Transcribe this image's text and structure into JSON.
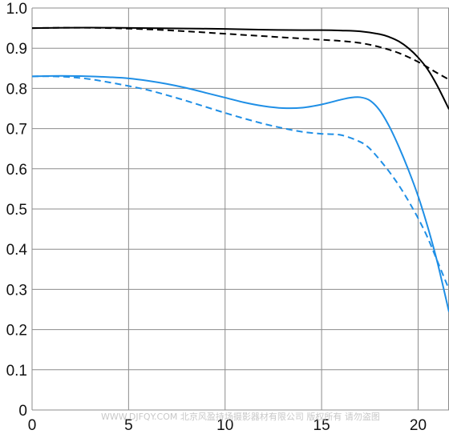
{
  "chart_data": {
    "type": "line",
    "title": "",
    "xlabel": "",
    "ylabel": "",
    "xlim": [
      0,
      21.6
    ],
    "ylim": [
      0,
      1.0
    ],
    "x_ticks": [
      "0",
      "5",
      "10",
      "15",
      "20"
    ],
    "y_ticks": [
      "0",
      "0.1",
      "0.2",
      "0.3",
      "0.4",
      "0.5",
      "0.6",
      "0.7",
      "0.8",
      "0.9",
      "1.0"
    ],
    "grid": true,
    "legend": "none",
    "colors": {
      "black": "#000000",
      "blue": "#1f8fe6",
      "grid": "#8c8c8c"
    },
    "series": [
      {
        "color": "#000000",
        "dash": false,
        "x": [
          0,
          2,
          4,
          6,
          8,
          10,
          12,
          14,
          15,
          16,
          17,
          18,
          18.5,
          19,
          19.5,
          20,
          20.5,
          21,
          21.6
        ],
        "y": [
          0.95,
          0.951,
          0.951,
          0.95,
          0.949,
          0.948,
          0.946,
          0.945,
          0.945,
          0.944,
          0.942,
          0.935,
          0.928,
          0.917,
          0.9,
          0.877,
          0.847,
          0.806,
          0.748
        ]
      },
      {
        "color": "#000000",
        "dash": true,
        "x": [
          0,
          2,
          4,
          6,
          8,
          10,
          12,
          14,
          15,
          16,
          17,
          18,
          19,
          20,
          21,
          21.6
        ],
        "y": [
          0.95,
          0.951,
          0.95,
          0.947,
          0.942,
          0.936,
          0.93,
          0.924,
          0.921,
          0.918,
          0.913,
          0.903,
          0.888,
          0.866,
          0.838,
          0.822
        ]
      },
      {
        "color": "#1f8fe6",
        "dash": false,
        "x": [
          0,
          1,
          2,
          3,
          4,
          5,
          6,
          7,
          8,
          9,
          10,
          11,
          12,
          13,
          14,
          15,
          16,
          16.5,
          17,
          17.5,
          18,
          18.5,
          19,
          19.5,
          20,
          20.5,
          21,
          21.6
        ],
        "y": [
          0.83,
          0.831,
          0.831,
          0.83,
          0.828,
          0.825,
          0.819,
          0.811,
          0.801,
          0.789,
          0.777,
          0.765,
          0.756,
          0.751,
          0.752,
          0.76,
          0.772,
          0.777,
          0.778,
          0.77,
          0.746,
          0.706,
          0.655,
          0.597,
          0.532,
          0.455,
          0.367,
          0.244
        ]
      },
      {
        "color": "#1f8fe6",
        "dash": true,
        "x": [
          0,
          1,
          2,
          3,
          4,
          5,
          6,
          7,
          8,
          9,
          10,
          11,
          12,
          13,
          14,
          15,
          16,
          17,
          17.5,
          18,
          18.5,
          19,
          19.5,
          20,
          20.5,
          21,
          21.6
        ],
        "y": [
          0.83,
          0.83,
          0.828,
          0.823,
          0.815,
          0.806,
          0.796,
          0.783,
          0.769,
          0.754,
          0.739,
          0.725,
          0.712,
          0.701,
          0.692,
          0.687,
          0.684,
          0.667,
          0.65,
          0.623,
          0.593,
          0.559,
          0.52,
          0.477,
          0.428,
          0.37,
          0.3
        ]
      }
    ]
  },
  "watermark": "WWW.DJFQY.COM 北京风盈持场摄影器材有限公司 版权所有 请勿盗图"
}
